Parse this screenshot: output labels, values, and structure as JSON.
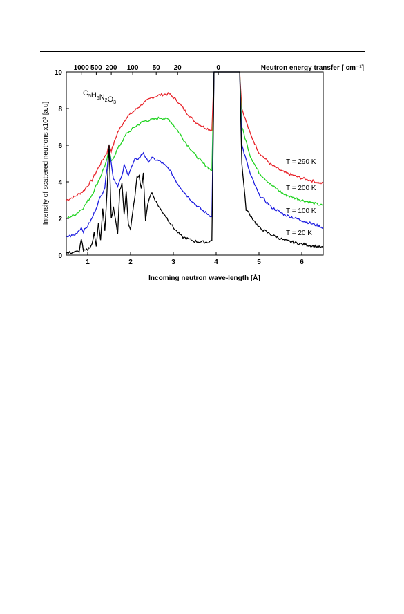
{
  "chart_data": {
    "type": "line",
    "top_axis_title": "Neutron energy transfer [ cm⁻¹]",
    "xlabel": "Incoming neutron wave-length [Å]",
    "ylabel": "Intensity of scattered neutrons x10³ [a.u]",
    "annotation": {
      "base": "C",
      "parts": [
        [
          "C",
          "5"
        ],
        [
          "H",
          "6"
        ],
        [
          "N",
          "2"
        ],
        [
          "O",
          "3"
        ]
      ]
    },
    "xlim": [
      0.5,
      6.5
    ],
    "ylim": [
      0,
      10
    ],
    "x_ticks": [
      1,
      2,
      3,
      4,
      5,
      6
    ],
    "y_ticks": [
      0,
      2,
      4,
      6,
      8,
      10
    ],
    "top_ticks": [
      {
        "label": "1000",
        "x": 0.85
      },
      {
        "label": "500",
        "x": 1.2
      },
      {
        "label": "200",
        "x": 1.55
      },
      {
        "label": "100",
        "x": 2.05
      },
      {
        "label": "50",
        "x": 2.6
      },
      {
        "label": "20",
        "x": 3.1
      },
      {
        "label": "0",
        "x": 4.05
      }
    ],
    "series": [
      {
        "name": "T = 290 K",
        "color": "#e8232a",
        "x": [
          0.5,
          0.7,
          0.9,
          1.1,
          1.3,
          1.45,
          1.5,
          1.55,
          1.7,
          1.9,
          2.1,
          2.3,
          2.5,
          2.7,
          2.9,
          3.1,
          3.3,
          3.5,
          3.7,
          3.9,
          3.95,
          4.55,
          4.6,
          4.8,
          5.0,
          5.3,
          5.6,
          6.0,
          6.5
        ],
        "y": [
          3.0,
          3.2,
          3.5,
          4.1,
          5.0,
          5.6,
          6.0,
          5.7,
          6.7,
          7.5,
          7.9,
          8.3,
          8.6,
          8.75,
          8.8,
          8.4,
          7.8,
          7.3,
          7.0,
          6.8,
          10.0,
          10.0,
          8.0,
          6.6,
          5.6,
          4.9,
          4.5,
          4.2,
          3.9
        ]
      },
      {
        "name": "T = 200 K",
        "color": "#21d321",
        "x": [
          0.5,
          0.7,
          0.9,
          1.1,
          1.3,
          1.45,
          1.5,
          1.55,
          1.7,
          1.9,
          2.1,
          2.3,
          2.5,
          2.7,
          2.9,
          3.1,
          3.3,
          3.5,
          3.7,
          3.9,
          3.95,
          4.55,
          4.6,
          4.8,
          5.0,
          5.3,
          5.6,
          6.0,
          6.5
        ],
        "y": [
          2.0,
          2.2,
          2.6,
          3.3,
          4.3,
          5.2,
          5.8,
          5.1,
          5.8,
          6.6,
          7.0,
          7.3,
          7.4,
          7.5,
          7.4,
          6.8,
          6.1,
          5.5,
          5.0,
          4.6,
          10.0,
          10.0,
          7.0,
          5.4,
          4.5,
          3.8,
          3.3,
          3.0,
          2.7
        ]
      },
      {
        "name": "T = 100 K",
        "color": "#1d1de0",
        "x": [
          0.5,
          0.7,
          0.85,
          0.9,
          1.0,
          1.1,
          1.2,
          1.3,
          1.4,
          1.5,
          1.6,
          1.7,
          1.8,
          1.85,
          1.95,
          2.1,
          2.2,
          2.3,
          2.4,
          2.5,
          2.7,
          2.9,
          3.1,
          3.3,
          3.5,
          3.7,
          3.9,
          3.95,
          4.55,
          4.6,
          4.8,
          5.0,
          5.3,
          5.6,
          6.0,
          6.5
        ],
        "y": [
          1.0,
          1.1,
          1.5,
          1.3,
          1.6,
          2.0,
          2.6,
          3.2,
          3.7,
          5.8,
          4.2,
          3.8,
          4.3,
          4.9,
          4.4,
          5.2,
          5.3,
          5.6,
          5.1,
          5.3,
          5.1,
          4.7,
          3.9,
          3.3,
          2.8,
          2.4,
          2.1,
          10.0,
          10.0,
          6.0,
          4.4,
          3.3,
          2.6,
          2.2,
          1.9,
          1.5
        ]
      },
      {
        "name": "T = 20 K",
        "color": "#000000",
        "x": [
          0.5,
          0.8,
          0.85,
          0.9,
          1.0,
          1.1,
          1.15,
          1.2,
          1.25,
          1.3,
          1.35,
          1.4,
          1.45,
          1.5,
          1.55,
          1.6,
          1.7,
          1.75,
          1.8,
          1.85,
          1.9,
          1.95,
          2.0,
          2.1,
          2.15,
          2.2,
          2.25,
          2.3,
          2.35,
          2.4,
          2.45,
          2.5,
          2.6,
          2.7,
          2.8,
          3.0,
          3.2,
          3.5,
          3.8,
          3.9,
          3.95,
          4.55,
          4.6,
          4.7,
          5.0,
          5.3,
          5.6,
          6.0,
          6.5
        ],
        "y": [
          0.1,
          0.2,
          0.9,
          0.2,
          0.3,
          0.6,
          1.2,
          0.5,
          1.8,
          0.8,
          2.5,
          1.3,
          3.4,
          6.0,
          2.0,
          2.6,
          1.2,
          3.5,
          3.9,
          2.2,
          3.5,
          1.7,
          1.4,
          3.2,
          4.2,
          4.4,
          3.6,
          4.5,
          1.8,
          2.8,
          3.2,
          3.4,
          2.9,
          2.5,
          2.2,
          1.5,
          1.0,
          0.75,
          0.7,
          0.8,
          10.0,
          10.0,
          5.0,
          2.5,
          1.5,
          1.1,
          0.8,
          0.6,
          0.4
        ]
      }
    ]
  }
}
